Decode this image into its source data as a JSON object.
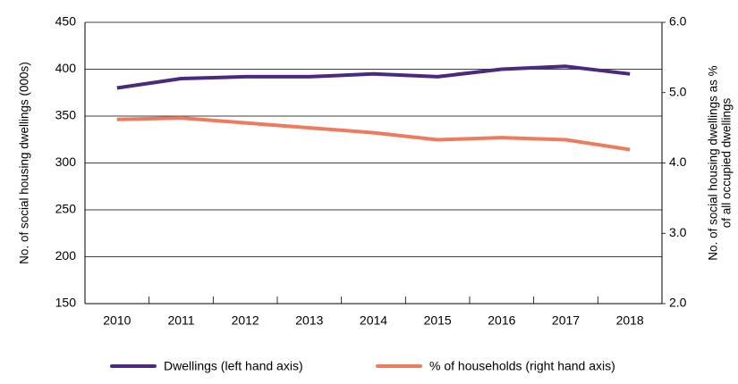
{
  "chart_data": {
    "type": "line",
    "y_label": "No. of social housing dwellings (000s)",
    "y2_label": [
      "No. of social housing dwellings as %",
      "of all occupied dwellings"
    ],
    "categories": [
      "2010",
      "2011",
      "2012",
      "2013",
      "2014",
      "2015",
      "2016",
      "2017",
      "2018"
    ],
    "series": [
      {
        "name": "Dwellings (left hand axis)",
        "color": "#4a2a7f",
        "axis": "y",
        "values": [
          380,
          390,
          392,
          392,
          395,
          392,
          400,
          403,
          395
        ]
      },
      {
        "name": "% of households (right hand axis)",
        "color": "#ef7b5f",
        "axis": "y2",
        "values": [
          4.62,
          4.64,
          4.57,
          4.5,
          4.43,
          4.33,
          4.36,
          4.33,
          4.19
        ]
      }
    ],
    "ylim": [
      150,
      450
    ],
    "yticks": [
      150,
      200,
      250,
      300,
      350,
      400,
      450
    ],
    "y2lim": [
      2,
      6
    ],
    "y2ticks": [
      {
        "value": 2,
        "label": "2.0"
      },
      {
        "value": 3,
        "label": "3.0"
      },
      {
        "value": 4,
        "label": "4.0"
      },
      {
        "value": 5,
        "label": "5.0"
      },
      {
        "value": 6,
        "label": "6.0"
      }
    ],
    "grid": true,
    "legend": "bottom"
  }
}
